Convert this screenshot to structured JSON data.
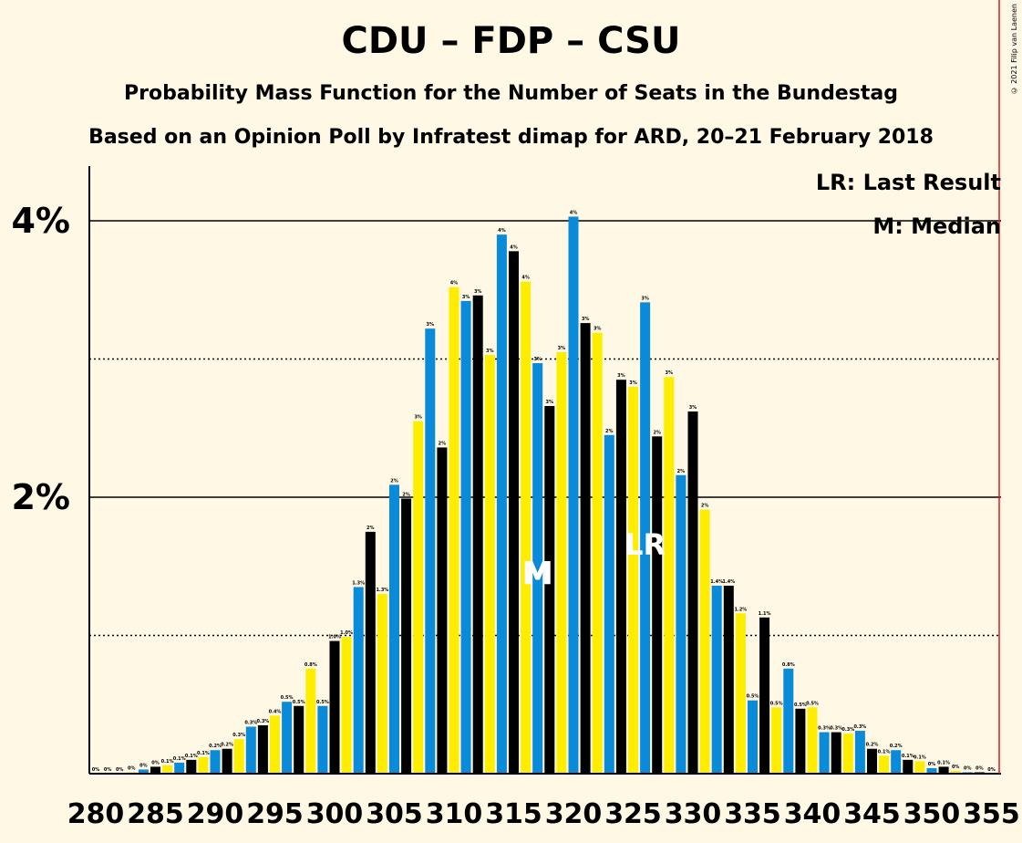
{
  "title": "CDU – FDP – CSU",
  "subtitle1": "Probability Mass Function for the Number of Seats in the Bundestag",
  "subtitle2": "Based on an Opinion Poll by Infratest dimap for ARD, 20–21 February 2018",
  "copyright": "© 2021 Filip van Laenen",
  "legend": {
    "lr": "LR: Last Result",
    "median": "M: Median"
  },
  "markers": {
    "median_label": "M",
    "median_seat": 317,
    "lr_label": "LR",
    "lr_seat": 326
  },
  "colors": {
    "background": "#FFF8E4",
    "blue": "#0A8BD9",
    "black": "#000000",
    "yellow": "#FFED00",
    "majority_line": "#E01A1A"
  },
  "chart_data": {
    "type": "bar",
    "x_range": [
      280,
      355
    ],
    "x_ticks": [
      "280",
      "285",
      "290",
      "295",
      "300",
      "305",
      "310",
      "315",
      "320",
      "325",
      "330",
      "335",
      "340",
      "345",
      "350",
      "355"
    ],
    "y_ticks": [
      "2%",
      "4%"
    ],
    "ylim": [
      0,
      4.4
    ],
    "majority_seat": 355,
    "bar_color_cycle": [
      "black",
      "yellow",
      "blue"
    ],
    "x": [
      280,
      281,
      282,
      283,
      284,
      285,
      286,
      287,
      288,
      289,
      290,
      291,
      292,
      293,
      294,
      295,
      296,
      297,
      298,
      299,
      300,
      301,
      302,
      303,
      304,
      305,
      306,
      307,
      308,
      309,
      310,
      311,
      312,
      313,
      314,
      315,
      316,
      317,
      318,
      319,
      320,
      321,
      322,
      323,
      324,
      325,
      326,
      327,
      328,
      329,
      330,
      331,
      332,
      333,
      334,
      335,
      336,
      337,
      338,
      339,
      340,
      341,
      342,
      343,
      344,
      345,
      346,
      347,
      348,
      349,
      350,
      351,
      352,
      353,
      354,
      355
    ],
    "values": [
      0,
      0,
      0,
      0.01,
      0.03,
      0.05,
      0.06,
      0.08,
      0.1,
      0.12,
      0.17,
      0.18,
      0.25,
      0.34,
      0.35,
      0.42,
      0.52,
      0.49,
      0.76,
      0.49,
      0.96,
      0.99,
      1.35,
      1.75,
      1.3,
      2.09,
      1.99,
      2.55,
      3.22,
      2.36,
      3.52,
      3.42,
      3.46,
      3.03,
      3.9,
      3.78,
      3.56,
      2.97,
      2.66,
      3.05,
      4.03,
      3.26,
      3.19,
      2.45,
      2.85,
      2.8,
      3.41,
      2.44,
      2.87,
      2.16,
      2.62,
      1.91,
      1.36,
      1.36,
      1.16,
      0.53,
      1.13,
      0.48,
      0.76,
      0.47,
      0.48,
      0.3,
      0.3,
      0.29,
      0.31,
      0.18,
      0.13,
      0.17,
      0.1,
      0.09,
      0.04,
      0.05,
      0.02,
      0.01,
      0.01,
      0
    ],
    "labels": [
      "0%",
      "0%",
      "0%",
      "0%",
      "0%",
      "0%",
      "0.1%",
      "0.1%",
      "0.1%",
      "0.1%",
      "0.2%",
      "0.2%",
      "0.3%",
      "0.3%",
      "0.3%",
      "0.4%",
      "0.5%",
      "0.5%",
      "0.8%",
      "0.5%",
      "1.0%",
      "1.0%",
      "1.3%",
      "2%",
      "1.3%",
      "2%",
      "2%",
      "3%",
      "3%",
      "2%",
      "4%",
      "3%",
      "3%",
      "3%",
      "4%",
      "4%",
      "4%",
      "3%",
      "3%",
      "3%",
      "4%",
      "3%",
      "3%",
      "2%",
      "3%",
      "3%",
      "3%",
      "2%",
      "3%",
      "2%",
      "3%",
      "2%",
      "1.4%",
      "1.4%",
      "1.2%",
      "0.5%",
      "1.1%",
      "0.5%",
      "0.8%",
      "0.5%",
      "0.5%",
      "0.3%",
      "0.3%",
      "0.3%",
      "0.3%",
      "0.2%",
      "0.1%",
      "0.2%",
      "0.1%",
      "0.1%",
      "0%",
      "0.1%",
      "0%",
      "0%",
      "0%",
      "0%"
    ]
  }
}
